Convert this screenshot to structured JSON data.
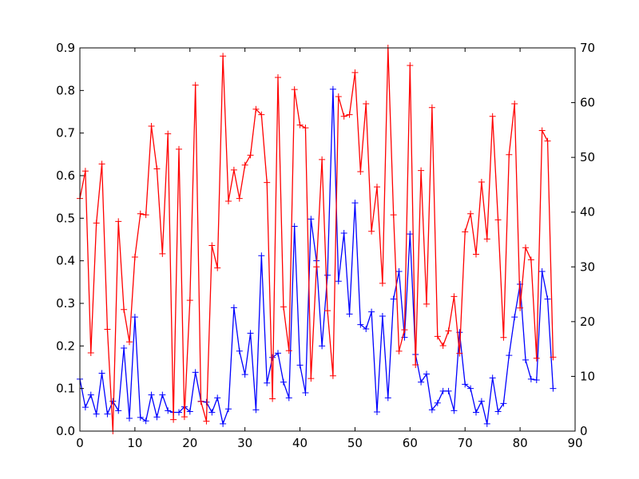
{
  "chart_data": {
    "type": "line",
    "title": "",
    "xlabel": "",
    "ylabel": "",
    "xlim": [
      0,
      90
    ],
    "ylim": [
      0,
      0.9
    ],
    "y2lim": [
      0,
      70
    ],
    "x_ticks": [
      "0",
      "10",
      "20",
      "30",
      "40",
      "50",
      "60",
      "70",
      "80",
      "90"
    ],
    "y_ticks": [
      "0.0",
      "0.1",
      "0.2",
      "0.3",
      "0.4",
      "0.5",
      "0.6",
      "0.7",
      "0.8",
      "0.9"
    ],
    "y2_ticks": [
      "0",
      "10",
      "20",
      "30",
      "40",
      "50",
      "60",
      "70"
    ],
    "grid": false,
    "marker": "+",
    "series": [
      {
        "axis": "left",
        "color": "#0000ff",
        "x": [
          0,
          1,
          2,
          3,
          4,
          5,
          6,
          7,
          8,
          9,
          10,
          11,
          12,
          13,
          14,
          15,
          16,
          17,
          18,
          19,
          20,
          21,
          22,
          23,
          24,
          25,
          26,
          27,
          28,
          29,
          30,
          31,
          32,
          33,
          34,
          35,
          36,
          37,
          38,
          39,
          40,
          41,
          42,
          43,
          44,
          45,
          46,
          47,
          48,
          49,
          50,
          51,
          52,
          53,
          54,
          55,
          56,
          57,
          58,
          59,
          60,
          61,
          62,
          63,
          64,
          65,
          66,
          67,
          68,
          69,
          70,
          71,
          72,
          73,
          74,
          75,
          76,
          77,
          78,
          79,
          80,
          81,
          82,
          83,
          84,
          85,
          86
        ],
        "values": [
          0.122,
          0.056,
          0.085,
          0.04,
          0.136,
          0.04,
          0.07,
          0.048,
          0.195,
          0.03,
          0.268,
          0.032,
          0.024,
          0.085,
          0.033,
          0.085,
          0.048,
          0.044,
          0.044,
          0.057,
          0.046,
          0.138,
          0.07,
          0.068,
          0.044,
          0.078,
          0.017,
          0.052,
          0.29,
          0.188,
          0.133,
          0.23,
          0.05,
          0.412,
          0.113,
          0.173,
          0.183,
          0.115,
          0.078,
          0.481,
          0.155,
          0.09,
          0.498,
          0.4,
          0.2,
          0.366,
          0.803,
          0.352,
          0.465,
          0.275,
          0.536,
          0.25,
          0.24,
          0.28,
          0.045,
          0.27,
          0.078,
          0.31,
          0.375,
          0.22,
          0.463,
          0.18,
          0.115,
          0.134,
          0.05,
          0.066,
          0.094,
          0.094,
          0.048,
          0.232,
          0.11,
          0.1,
          0.044,
          0.07,
          0.017,
          0.125,
          0.046,
          0.065,
          0.178,
          0.268,
          0.345,
          0.167,
          0.122,
          0.12,
          0.375,
          0.31,
          0.1
        ]
      },
      {
        "axis": "right",
        "color": "#ff0000",
        "x": [
          0,
          1,
          2,
          3,
          4,
          5,
          6,
          7,
          8,
          9,
          10,
          11,
          12,
          13,
          14,
          15,
          16,
          17,
          18,
          19,
          20,
          21,
          22,
          23,
          24,
          25,
          26,
          27,
          28,
          29,
          30,
          31,
          32,
          33,
          34,
          35,
          36,
          37,
          38,
          39,
          40,
          41,
          42,
          43,
          44,
          45,
          46,
          47,
          48,
          49,
          50,
          51,
          52,
          53,
          54,
          55,
          56,
          57,
          58,
          59,
          60,
          61,
          62,
          63,
          64,
          65,
          66,
          67,
          68,
          69,
          70,
          71,
          72,
          73,
          74,
          75,
          76,
          77,
          78,
          79,
          80,
          81,
          82,
          83,
          84,
          85,
          86
        ],
        "values": [
          42.5,
          47.5,
          14.3,
          38.0,
          48.8,
          18.6,
          0.0,
          38.3,
          22.2,
          16.3,
          31.8,
          39.7,
          39.5,
          55.7,
          47.9,
          32.4,
          54.3,
          2.1,
          51.5,
          2.6,
          23.9,
          63.2,
          5.4,
          1.8,
          33.9,
          29.8,
          68.5,
          42.0,
          47.7,
          42.5,
          48.6,
          50.4,
          58.8,
          57.8,
          45.4,
          5.9,
          64.6,
          22.7,
          14.7,
          62.4,
          55.9,
          55.4,
          9.6,
          30.0,
          49.6,
          22.0,
          10.1,
          61.1,
          57.5,
          57.8,
          65.5,
          47.4,
          59.8,
          36.5,
          44.6,
          27.0,
          70.0,
          39.5,
          14.6,
          18.5,
          66.8,
          12.1,
          47.6,
          23.2,
          59.1,
          17.3,
          15.6,
          18.3,
          24.6,
          14.2,
          36.4,
          39.7,
          32.3,
          45.5,
          35.1,
          57.5,
          38.6,
          17.1,
          50.5,
          59.8,
          22.5,
          33.5,
          31.3,
          13.3,
          54.9,
          53.0,
          13.5
        ]
      }
    ]
  }
}
